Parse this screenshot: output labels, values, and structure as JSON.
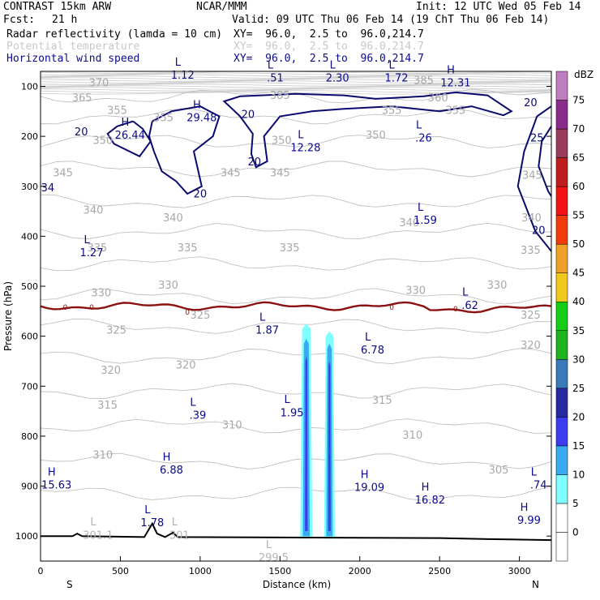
{
  "header": {
    "model": "CONTRAST 15km ARW",
    "source": "NCAR/MMM",
    "init": "Init: 12 UTC Wed 05 Feb 14",
    "fcst_label": "Fcst:",
    "fcst_value": "21 h",
    "valid": "Valid: 09 UTC Thu 06 Feb 14 (19 ChT Thu 06 Feb 14)",
    "fields": [
      {
        "name": "Radar reflectivity (lamda = 10 cm)",
        "xy": "XY=  96.0,  2.5 to  96.0,214.7",
        "color": "#000000"
      },
      {
        "name": "Potential temperature",
        "xy": "XY=  96.0,  2.5 to  96.0,214.7",
        "color": "#c8c8c8"
      },
      {
        "name": "Horizontal wind speed",
        "xy": "XY=  96.0,  2.5 to  96.0,214.7",
        "color": "#0a0a8c"
      }
    ]
  },
  "chart_data": {
    "type": "contour",
    "xlabel": "Distance (km)",
    "ylabel": "Pressure (hPa)",
    "x_ticks": [
      0,
      500,
      1000,
      1500,
      2000,
      2500,
      3000
    ],
    "y_ticks": [
      100,
      200,
      300,
      400,
      500,
      600,
      700,
      800,
      900,
      1000
    ],
    "xlim": [
      0,
      3200
    ],
    "ylim": [
      1050,
      70
    ],
    "x_end_labels": {
      "left": "S",
      "right": "N"
    },
    "colorbar": {
      "unit": "dBZ",
      "levels": [
        0,
        5,
        10,
        15,
        20,
        25,
        30,
        35,
        40,
        45,
        50,
        55,
        60,
        65,
        70,
        75
      ],
      "colors": [
        "#ffffff",
        "#ffffff",
        "#7fffff",
        "#3aaaf0",
        "#3c3cee",
        "#2828a0",
        "#3a7ab8",
        "#1eb41e",
        "#14cd14",
        "#f0c81e",
        "#f0a028",
        "#f03c0a",
        "#f01414",
        "#be1e1e",
        "#9a3c5c",
        "#8a2c8c",
        "#c07cc0"
      ]
    },
    "theta_labels": [
      {
        "x": 365,
        "p": 100,
        "t": "370"
      },
      {
        "x": 260,
        "p": 130,
        "t": "365"
      },
      {
        "x": 480,
        "p": 155,
        "t": "355"
      },
      {
        "x": 770,
        "p": 170,
        "t": "355"
      },
      {
        "x": 2200,
        "p": 155,
        "t": "355"
      },
      {
        "x": 2600,
        "p": 155,
        "t": "355"
      },
      {
        "x": 2490,
        "p": 130,
        "t": "360"
      },
      {
        "x": 1500,
        "p": 125,
        "t": "385"
      },
      {
        "x": 2400,
        "p": 95,
        "t": "385"
      },
      {
        "x": 390,
        "p": 215,
        "t": "350"
      },
      {
        "x": 1510,
        "p": 215,
        "t": "350"
      },
      {
        "x": 2100,
        "p": 205,
        "t": "350"
      },
      {
        "x": 140,
        "p": 280,
        "t": "345"
      },
      {
        "x": 1190,
        "p": 280,
        "t": "345"
      },
      {
        "x": 1500,
        "p": 280,
        "t": "345"
      },
      {
        "x": 3080,
        "p": 285,
        "t": "345"
      },
      {
        "x": 330,
        "p": 355,
        "t": "340"
      },
      {
        "x": 830,
        "p": 370,
        "t": "340"
      },
      {
        "x": 2310,
        "p": 380,
        "t": "340"
      },
      {
        "x": 3075,
        "p": 370,
        "t": "340"
      },
      {
        "x": 355,
        "p": 430,
        "t": "335"
      },
      {
        "x": 920,
        "p": 430,
        "t": "335"
      },
      {
        "x": 1560,
        "p": 430,
        "t": "335"
      },
      {
        "x": 3070,
        "p": 435,
        "t": "335"
      },
      {
        "x": 380,
        "p": 520,
        "t": "330"
      },
      {
        "x": 800,
        "p": 505,
        "t": "330"
      },
      {
        "x": 2350,
        "p": 515,
        "t": "330"
      },
      {
        "x": 2860,
        "p": 505,
        "t": "330"
      },
      {
        "x": 1000,
        "p": 565,
        "t": "325"
      },
      {
        "x": 475,
        "p": 595,
        "t": "325"
      },
      {
        "x": 3070,
        "p": 565,
        "t": "325"
      },
      {
        "x": 440,
        "p": 675,
        "t": "320"
      },
      {
        "x": 910,
        "p": 665,
        "t": "320"
      },
      {
        "x": 3070,
        "p": 625,
        "t": "320"
      },
      {
        "x": 420,
        "p": 745,
        "t": "315"
      },
      {
        "x": 2140,
        "p": 735,
        "t": "315"
      },
      {
        "x": 1200,
        "p": 785,
        "t": "310"
      },
      {
        "x": 390,
        "p": 845,
        "t": "310"
      },
      {
        "x": 2330,
        "p": 805,
        "t": "310"
      },
      {
        "x": 2870,
        "p": 875,
        "t": "305"
      }
    ],
    "extrema_labels": [
      {
        "x": 890,
        "p": 85,
        "k": "L",
        "v": "1.12",
        "c": "blue"
      },
      {
        "x": 1470,
        "p": 90,
        "k": "L",
        "v": ".51",
        "c": "blue"
      },
      {
        "x": 1860,
        "p": 90,
        "k": "L",
        "v": "2.30",
        "c": "blue"
      },
      {
        "x": 2230,
        "p": 90,
        "k": "L",
        "v": "1.72",
        "c": "blue"
      },
      {
        "x": 2600,
        "p": 100,
        "k": "H",
        "v": "12.31",
        "c": "blue"
      },
      {
        "x": 1010,
        "p": 170,
        "k": "H",
        "v": "29.48",
        "c": "blue"
      },
      {
        "x": 560,
        "p": 205,
        "k": "H",
        "v": "26.44",
        "c": "blue"
      },
      {
        "x": 1660,
        "p": 230,
        "k": "L",
        "v": "12.28",
        "c": "blue"
      },
      {
        "x": 2400,
        "p": 210,
        "k": "L",
        "v": ".26",
        "c": "blue"
      },
      {
        "x": 2410,
        "p": 375,
        "k": "L",
        "v": "1.59",
        "c": "blue"
      },
      {
        "x": 320,
        "p": 440,
        "k": "L",
        "v": "1.27",
        "c": "blue"
      },
      {
        "x": 2690,
        "p": 545,
        "k": "L",
        "v": ".62",
        "c": "blue"
      },
      {
        "x": 1420,
        "p": 595,
        "k": "L",
        "v": "1.87",
        "c": "blue"
      },
      {
        "x": 2080,
        "p": 635,
        "k": "L",
        "v": "6.78",
        "c": "blue"
      },
      {
        "x": 1575,
        "p": 760,
        "k": "L",
        "v": "1.95",
        "c": "blue"
      },
      {
        "x": 985,
        "p": 765,
        "k": "L",
        "v": ".39",
        "c": "blue"
      },
      {
        "x": 820,
        "p": 875,
        "k": "H",
        "v": "6.88",
        "c": "blue"
      },
      {
        "x": 100,
        "p": 905,
        "k": "H",
        "v": "15.63",
        "c": "blue"
      },
      {
        "x": 2060,
        "p": 910,
        "k": "H",
        "v": "19.09",
        "c": "blue"
      },
      {
        "x": 2440,
        "p": 935,
        "k": "H",
        "v": "16.82",
        "c": "blue"
      },
      {
        "x": 3120,
        "p": 905,
        "k": "L",
        "v": ".74",
        "c": "blue"
      },
      {
        "x": 3060,
        "p": 975,
        "k": "H",
        "v": "9.99",
        "c": "blue"
      },
      {
        "x": 700,
        "p": 980,
        "k": "L",
        "v": "1.78",
        "c": "blue"
      },
      {
        "x": 360,
        "p": 1005,
        "k": "L",
        "v": "301.1",
        "c": "grey"
      },
      {
        "x": 870,
        "p": 1005,
        "k": "L",
        "v": "301",
        "c": "grey"
      },
      {
        "x": 1460,
        "p": 1050,
        "k": "L",
        "v": "299.5",
        "c": "grey"
      }
    ],
    "wind_contour_labels": [
      {
        "x": 1300,
        "p": 163,
        "t": "20"
      },
      {
        "x": 255,
        "p": 198,
        "t": "20"
      },
      {
        "x": 1340,
        "p": 258,
        "t": "20"
      },
      {
        "x": 1000,
        "p": 322,
        "t": "20"
      },
      {
        "x": 3070,
        "p": 140,
        "t": "20"
      },
      {
        "x": 3110,
        "p": 210,
        "t": "25"
      },
      {
        "x": 3120,
        "p": 395,
        "t": "20"
      },
      {
        "x": 45,
        "p": 310,
        "t": "34"
      }
    ],
    "freezing_labels": [
      {
        "x": 155,
        "p": 542,
        "t": "0"
      },
      {
        "x": 320,
        "p": 542,
        "t": "0"
      },
      {
        "x": 920,
        "p": 552,
        "t": "0"
      },
      {
        "x": 2200,
        "p": 542,
        "t": "0"
      },
      {
        "x": 2600,
        "p": 545,
        "t": "0"
      }
    ]
  }
}
